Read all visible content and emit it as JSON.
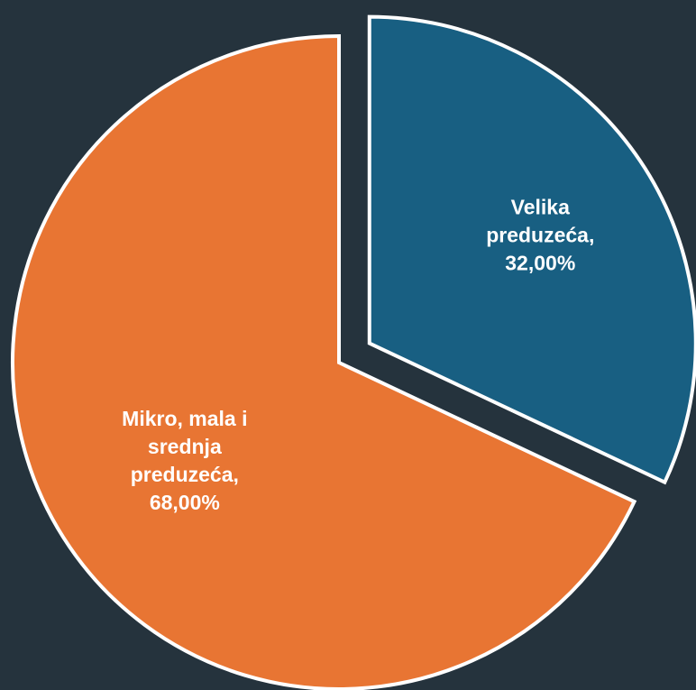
{
  "chart_data": {
    "type": "pie",
    "title": "",
    "slices": [
      {
        "label_lines": [
          "Velika",
          "preduzeća,",
          "32,00%"
        ],
        "value": 32.0,
        "color": "#185f82",
        "exploded": true
      },
      {
        "label_lines": [
          "Mikro, mala i",
          "srednja",
          "preduzeća,",
          "68,00%"
        ],
        "value": 68.0,
        "color": "#e87533",
        "exploded": false
      }
    ],
    "start_angle_degrees": 0,
    "direction": "clockwise",
    "legend": "none"
  },
  "colors": {
    "background": "#25333d",
    "slice_border": "#ffffff",
    "label_text": "#ffffff"
  }
}
